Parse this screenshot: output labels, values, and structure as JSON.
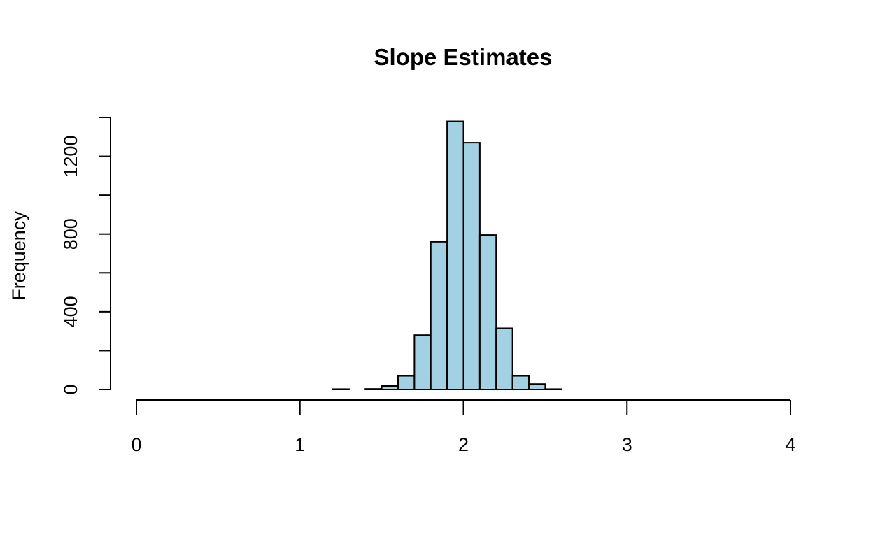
{
  "chart_data": {
    "type": "bar",
    "title": "Slope Estimates",
    "xlabel": "",
    "ylabel": "Frequency",
    "xlim": [
      0,
      4
    ],
    "ylim": [
      0,
      1400
    ],
    "x_ticks": [
      0,
      1,
      2,
      3,
      4
    ],
    "y_ticks": [
      0,
      400,
      800,
      1200
    ],
    "y_minor_ticks": [
      0,
      200,
      400,
      600,
      800,
      1000,
      1200,
      1400
    ],
    "bin_width": 0.1,
    "bins": [
      {
        "x0": 1.2,
        "x1": 1.3,
        "count": 2
      },
      {
        "x0": 1.3,
        "x1": 1.4,
        "count": 0
      },
      {
        "x0": 1.4,
        "x1": 1.5,
        "count": 3
      },
      {
        "x0": 1.5,
        "x1": 1.6,
        "count": 18
      },
      {
        "x0": 1.6,
        "x1": 1.7,
        "count": 70
      },
      {
        "x0": 1.7,
        "x1": 1.8,
        "count": 280
      },
      {
        "x0": 1.8,
        "x1": 1.9,
        "count": 760
      },
      {
        "x0": 1.9,
        "x1": 2.0,
        "count": 1380
      },
      {
        "x0": 2.0,
        "x1": 2.1,
        "count": 1270
      },
      {
        "x0": 2.1,
        "x1": 2.2,
        "count": 795
      },
      {
        "x0": 2.2,
        "x1": 2.3,
        "count": 315
      },
      {
        "x0": 2.3,
        "x1": 2.4,
        "count": 70
      },
      {
        "x0": 2.4,
        "x1": 2.5,
        "count": 28
      },
      {
        "x0": 2.5,
        "x1": 2.6,
        "count": 2
      }
    ],
    "bar_fill": "#a1d1e3",
    "bar_stroke": "#000000",
    "grid": false,
    "legend": "none"
  }
}
